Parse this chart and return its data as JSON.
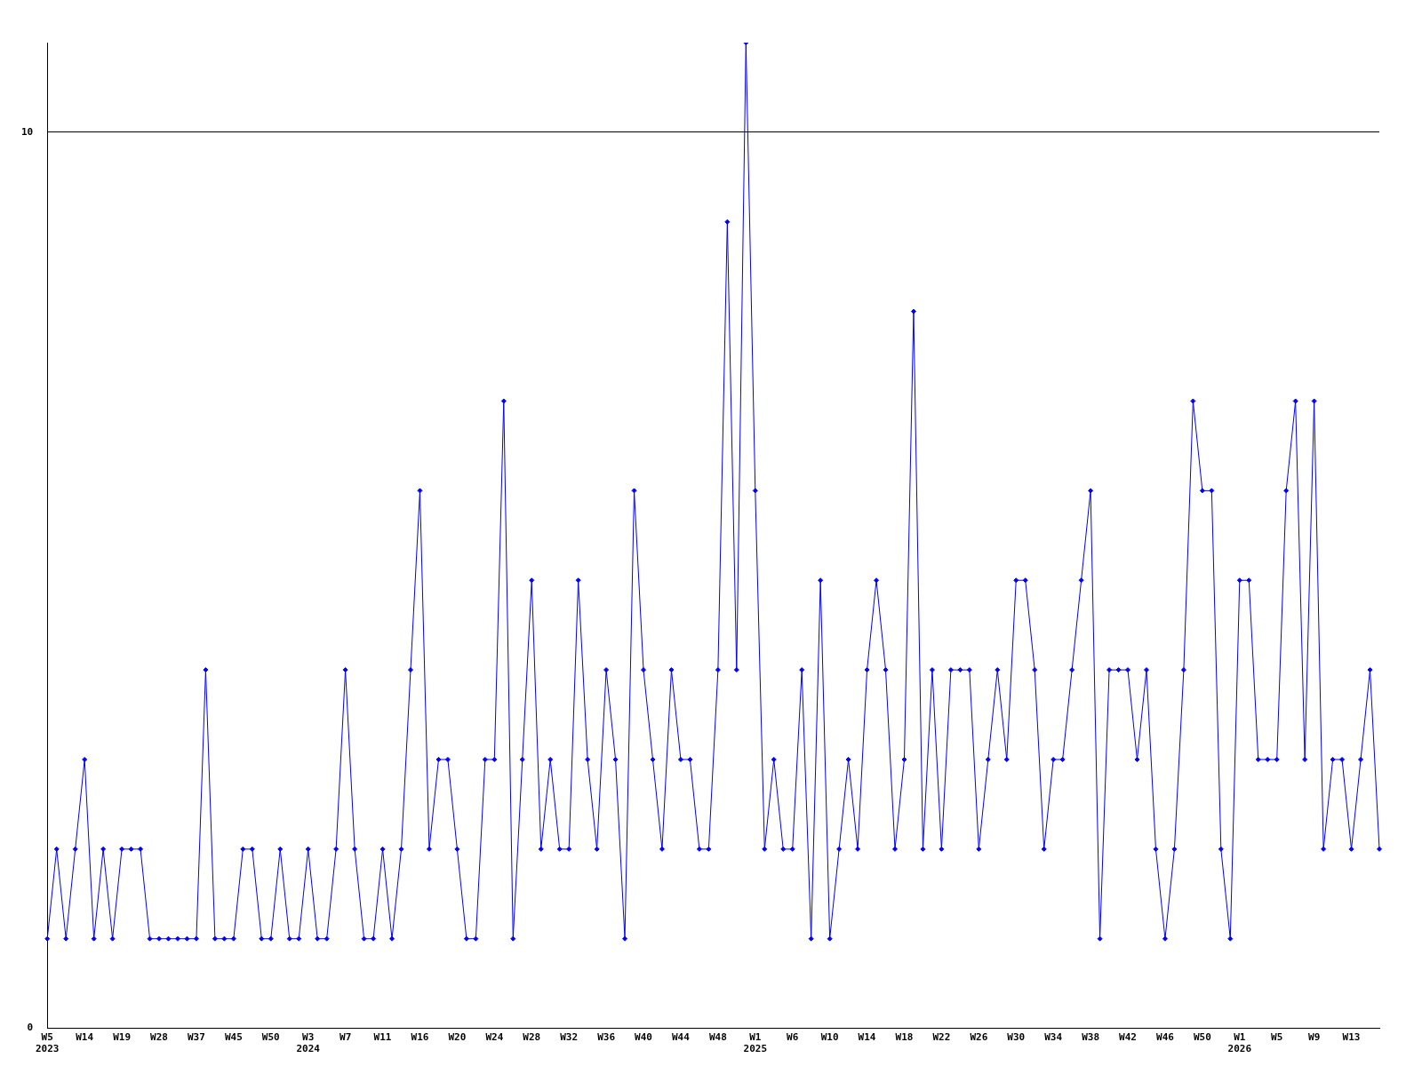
{
  "chart_data": {
    "type": "line",
    "categories": [
      "W5 2023",
      null,
      null,
      null,
      "W14",
      null,
      null,
      null,
      "W19",
      null,
      null,
      null,
      "W28",
      null,
      null,
      null,
      "W37",
      null,
      null,
      null,
      "W45",
      null,
      null,
      null,
      "W50",
      null,
      null,
      null,
      "W3 2024",
      null,
      null,
      null,
      "W7",
      null,
      null,
      null,
      "W11",
      null,
      null,
      null,
      "W16",
      null,
      null,
      null,
      "W20",
      null,
      null,
      null,
      "W24",
      null,
      null,
      null,
      "W28",
      null,
      null,
      null,
      "W32",
      null,
      null,
      null,
      "W36",
      null,
      null,
      null,
      "W40",
      null,
      null,
      null,
      "W44",
      null,
      null,
      null,
      "W48",
      null,
      null,
      null,
      "W1 2025",
      null,
      null,
      null,
      "W6",
      null,
      null,
      null,
      "W10",
      null,
      null,
      null,
      "W14",
      null,
      null,
      null,
      "W18",
      null,
      null,
      null,
      "W22",
      null,
      null,
      null,
      "W26",
      null,
      null,
      null,
      "W30",
      null,
      null,
      null,
      "W34",
      null,
      null,
      null,
      "W38",
      null,
      null,
      null,
      "W42",
      null,
      null,
      null,
      "W46",
      null,
      null,
      null,
      "W50",
      null,
      null,
      null,
      "W1 2026",
      null,
      null,
      null,
      "W5",
      null,
      null,
      null,
      "W9",
      null,
      null,
      null,
      "W13",
      null,
      null,
      null
    ],
    "series": [
      {
        "color": "#0000ff",
        "values": [
          1,
          2,
          1,
          2,
          3,
          1,
          2,
          1,
          2,
          2,
          2,
          1,
          1,
          1,
          1,
          1,
          1,
          4,
          1,
          1,
          1,
          2,
          2,
          1,
          1,
          2,
          1,
          1,
          2,
          1,
          1,
          2,
          4,
          2,
          1,
          1,
          2,
          1,
          2,
          4,
          6,
          2,
          3,
          3,
          2,
          1,
          1,
          3,
          3,
          7,
          1,
          3,
          5,
          2,
          3,
          2,
          2,
          5,
          3,
          2,
          4,
          3,
          1,
          6,
          4,
          3,
          2,
          4,
          3,
          3,
          2,
          2,
          4,
          9,
          4,
          11,
          6,
          2,
          3,
          2,
          2,
          4,
          1,
          5,
          1,
          2,
          3,
          2,
          4,
          5,
          4,
          2,
          3,
          8,
          2,
          4,
          2,
          4,
          4,
          4,
          2,
          3,
          4,
          3,
          5,
          5,
          4,
          2,
          3,
          3,
          4,
          5,
          6,
          1,
          4,
          4,
          4,
          3,
          4,
          2,
          1,
          2,
          4,
          7,
          6,
          6,
          2,
          1,
          5,
          5,
          3,
          3,
          3,
          6,
          7,
          3,
          7,
          2,
          3,
          3,
          2,
          3,
          4,
          2
        ]
      }
    ],
    "ylim": [
      0,
      11
    ],
    "yticks": [
      0,
      10
    ],
    "grid": "y",
    "marker": "diamond",
    "line_style": "solid",
    "legend": false
  }
}
